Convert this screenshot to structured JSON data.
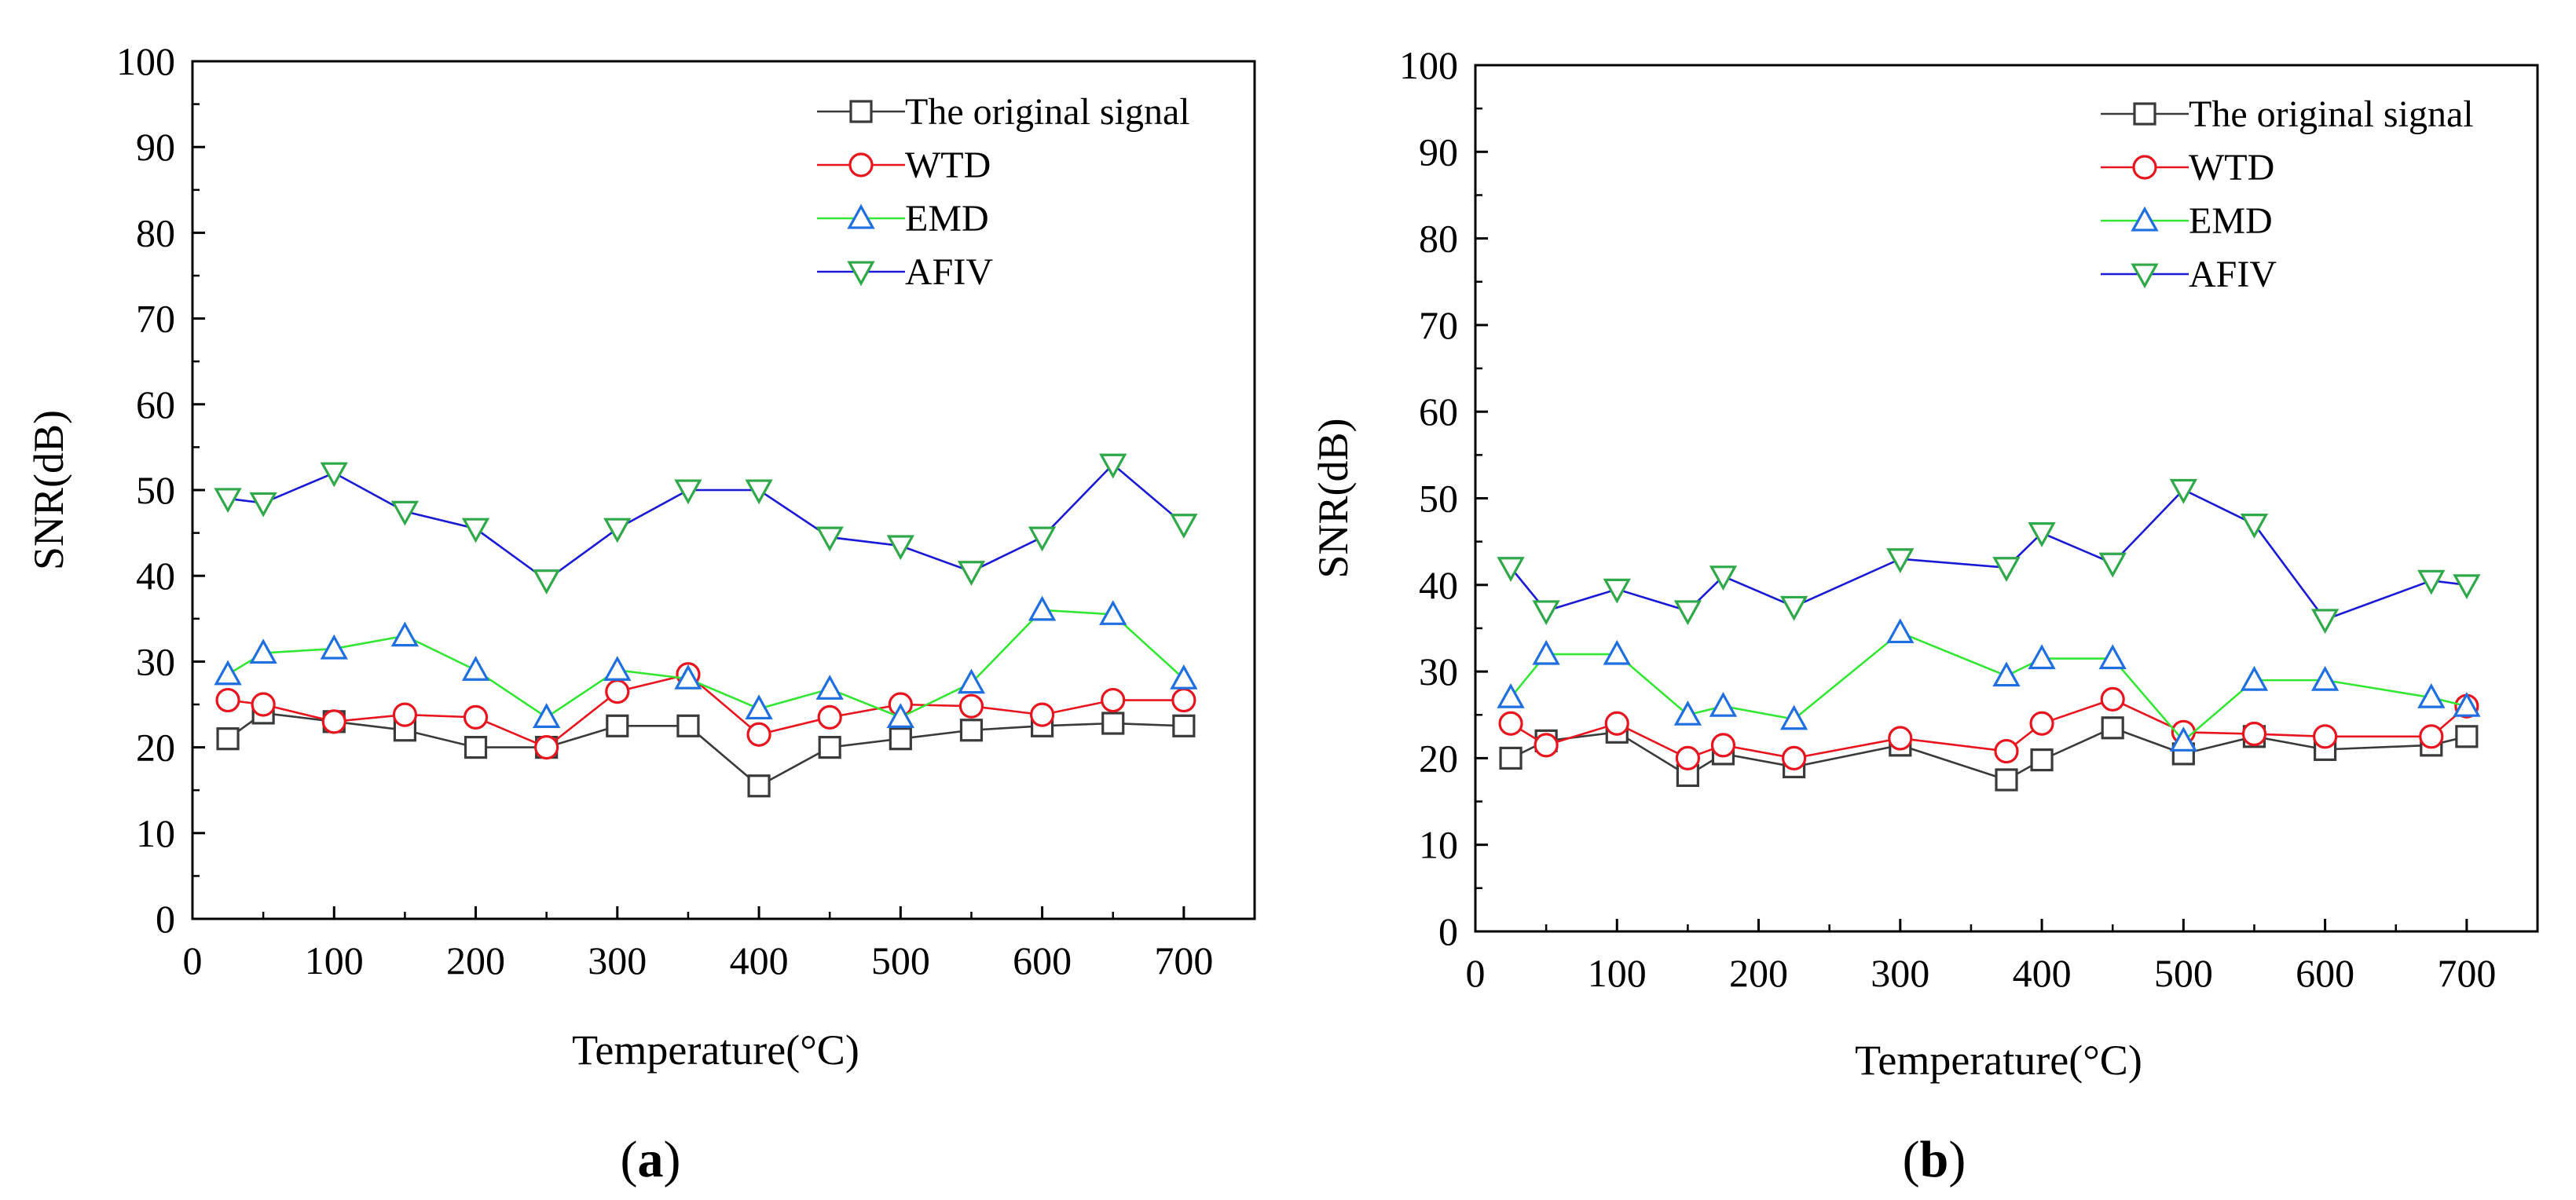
{
  "figure": {
    "panels": [
      "a",
      "b"
    ]
  },
  "chart_data": [
    {
      "type": "line",
      "panel_label": "a",
      "xlabel": "Temperature(°C)",
      "ylabel": "SNR(dB)",
      "xlim": [
        0,
        750
      ],
      "ylim": [
        0,
        100
      ],
      "xticks": [
        0,
        100,
        200,
        300,
        400,
        500,
        600,
        700
      ],
      "yticks": [
        0,
        10,
        20,
        30,
        40,
        50,
        60,
        70,
        80,
        90,
        100
      ],
      "legend_position": "top-right",
      "series": [
        {
          "name": "The original signal",
          "line_color": "#3a3a3a",
          "marker_color": "#3a3a3a",
          "marker": "square",
          "x": [
            25,
            50,
            100,
            150,
            200,
            250,
            300,
            350,
            400,
            450,
            500,
            550,
            600,
            650,
            700
          ],
          "y": [
            21,
            24,
            23,
            22,
            20,
            20,
            22.5,
            22.5,
            15.5,
            20,
            21,
            22,
            22.5,
            22.8,
            22.5
          ]
        },
        {
          "name": "WTD",
          "line_color": "#e8141e",
          "marker_color": "#e8141e",
          "marker": "circle",
          "x": [
            25,
            50,
            100,
            150,
            200,
            250,
            300,
            350,
            400,
            450,
            500,
            550,
            600,
            650,
            700
          ],
          "y": [
            25.5,
            25,
            23,
            23.8,
            23.5,
            20,
            26.5,
            28.5,
            21.5,
            23.5,
            25,
            24.8,
            23.8,
            25.5,
            25.5
          ]
        },
        {
          "name": "EMD",
          "line_color": "#33e633",
          "marker_color": "#1f6fe0",
          "marker": "triangle-up",
          "x": [
            25,
            50,
            100,
            150,
            200,
            250,
            300,
            350,
            400,
            450,
            500,
            550,
            600,
            650,
            700
          ],
          "y": [
            28.5,
            31,
            31.5,
            33,
            29,
            23.5,
            29,
            28,
            24.5,
            26.8,
            23.5,
            27.5,
            36,
            35.5,
            28
          ]
        },
        {
          "name": "AFIV",
          "line_color": "#1a1ad6",
          "marker_color": "#2fa84a",
          "marker": "triangle-down",
          "x": [
            25,
            50,
            100,
            150,
            200,
            250,
            300,
            350,
            400,
            450,
            500,
            550,
            600,
            650,
            700
          ],
          "y": [
            49,
            48.5,
            52,
            47.5,
            45.5,
            39.5,
            45.5,
            50,
            50,
            44.5,
            43.5,
            40.5,
            44.5,
            53,
            46
          ]
        }
      ]
    },
    {
      "type": "line",
      "panel_label": "b",
      "xlabel": "Temperature(°C)",
      "ylabel": "SNR(dB)",
      "xlim": [
        0,
        750
      ],
      "ylim": [
        0,
        100
      ],
      "xticks": [
        0,
        100,
        200,
        300,
        400,
        500,
        600,
        700
      ],
      "yticks": [
        0,
        10,
        20,
        30,
        40,
        50,
        60,
        70,
        80,
        90,
        100
      ],
      "legend_position": "top-right",
      "series": [
        {
          "name": "The original signal",
          "line_color": "#3a3a3a",
          "marker_color": "#3a3a3a",
          "marker": "square",
          "x": [
            25,
            50,
            100,
            150,
            175,
            225,
            300,
            375,
            400,
            450,
            500,
            550,
            600,
            675,
            700
          ],
          "y": [
            20,
            22,
            23,
            18,
            20.5,
            19,
            21.5,
            17.5,
            19.8,
            23.5,
            20.5,
            22.5,
            21,
            21.5,
            22.5
          ]
        },
        {
          "name": "WTD",
          "line_color": "#e8141e",
          "marker_color": "#e8141e",
          "marker": "circle",
          "x": [
            25,
            50,
            100,
            150,
            175,
            225,
            300,
            375,
            400,
            450,
            500,
            550,
            600,
            675,
            700
          ],
          "y": [
            24,
            21.5,
            24,
            20,
            21.5,
            20,
            22.3,
            20.8,
            24,
            26.8,
            23,
            22.8,
            22.5,
            22.5,
            26
          ]
        },
        {
          "name": "EMD",
          "line_color": "#33e633",
          "marker_color": "#1f6fe0",
          "marker": "triangle-up",
          "x": [
            25,
            50,
            100,
            150,
            175,
            225,
            300,
            375,
            400,
            450,
            500,
            550,
            600,
            675,
            700
          ],
          "y": [
            27,
            32,
            32,
            25,
            26,
            24.5,
            34.5,
            29.5,
            31.5,
            31.5,
            22,
            29,
            29,
            27,
            26
          ]
        },
        {
          "name": "AFIV",
          "line_color": "#1a1ad6",
          "marker_color": "#2fa84a",
          "marker": "triangle-down",
          "x": [
            25,
            50,
            100,
            150,
            175,
            225,
            300,
            375,
            400,
            450,
            500,
            550,
            600,
            675,
            700
          ],
          "y": [
            42,
            37,
            39.5,
            37,
            41,
            37.5,
            43,
            42,
            46,
            42.5,
            51,
            47,
            36,
            40.5,
            40
          ]
        }
      ]
    }
  ]
}
